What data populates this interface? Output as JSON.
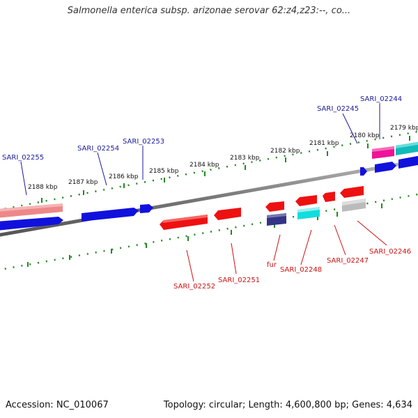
{
  "title": "Salmonella enterica subsp. arizonae serovar 62:z4,z23:--, co...",
  "footer": {
    "accession": "Accession: NC_010067",
    "stats": "Topology: circular; Length: 4,600,800 bp; Genes: 4,634"
  },
  "colors": {
    "forward_label": "#1a1a9a",
    "reverse_label": "#cc1111",
    "forward_gene": "#1111dd",
    "reverse_gene": "#ee1111",
    "pseudo_gene": "#ee8888",
    "cyan_gene": "#11dddd",
    "magenta_gene": "#ee1199",
    "teal_gene": "#11bbbb",
    "navy_gene": "#333388",
    "grey_gene": "#bbbbbb",
    "backbone": "#888888",
    "tick": "#228822"
  },
  "scale_labels": [
    "2188 kbp",
    "2187 kbp",
    "2186 kbp",
    "2185 kbp",
    "2184 kbp",
    "2183 kbp",
    "2182 kbp",
    "2181 kbp",
    "2180 kbp",
    "2179 kbp"
  ],
  "forward_genes": [
    "SARI_02255",
    "SARI_02254",
    "SARI_02253",
    "SARI_02245",
    "SARI_02244"
  ],
  "reverse_genes": [
    "SARI_02252",
    "SARI_02251",
    "fur",
    "SARI_02248",
    "SARI_02247",
    "SARI_02246"
  ]
}
